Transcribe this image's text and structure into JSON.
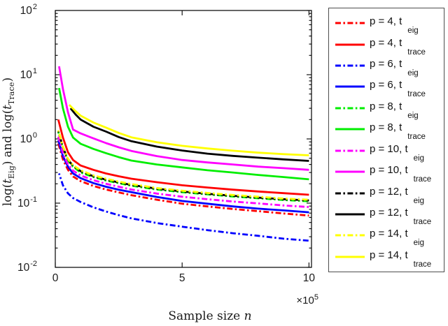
{
  "figure": {
    "background": "#ffffff"
  },
  "chart_data": {
    "type": "line",
    "title": "",
    "xlabel": {
      "text": "Sample size ",
      "var": "n"
    },
    "ylabel": {
      "p1": "log(",
      "t1": "t",
      "s1": "Eig",
      "p2": ") and log(",
      "t2": "t",
      "s2": "Trace",
      "p3": ")"
    },
    "x_axis": {
      "unit": "1e5",
      "range": [
        0,
        10.1
      ],
      "ticks": [
        0,
        5,
        10
      ],
      "tick_labels": [
        "0",
        "5",
        "10"
      ],
      "multiplier": {
        "base": "×10",
        "exp": "5"
      }
    },
    "y_axis": {
      "scale": "log",
      "range_exp": [
        -2,
        2
      ],
      "tick_base": "10",
      "tick_exponents": [
        "2",
        "1",
        "0",
        "-1",
        "-2"
      ],
      "minor_ticks": true
    },
    "grid": false,
    "legend_position": "outside-right",
    "series": [
      {
        "name": "p4-eig",
        "label": "p = 4, t_eig",
        "color": "#FF0000",
        "style": "dashdot",
        "points": [
          [
            0.12,
            0.85
          ],
          [
            0.3,
            0.48
          ],
          [
            0.5,
            0.33
          ],
          [
            0.7,
            0.26
          ],
          [
            1,
            0.22
          ],
          [
            1.5,
            0.185
          ],
          [
            2,
            0.163
          ],
          [
            2.5,
            0.147
          ],
          [
            3,
            0.133
          ],
          [
            4,
            0.113
          ],
          [
            5,
            0.098
          ],
          [
            6,
            0.089
          ],
          [
            7,
            0.081
          ],
          [
            8,
            0.075
          ],
          [
            9,
            0.069
          ],
          [
            10,
            0.064
          ]
        ]
      },
      {
        "name": "p4-trace",
        "label": "p = 4, t_trace",
        "color": "#FF0000",
        "style": "solid",
        "points": [
          [
            0.12,
            2.0
          ],
          [
            0.3,
            1.05
          ],
          [
            0.5,
            0.62
          ],
          [
            0.7,
            0.47
          ],
          [
            1,
            0.385
          ],
          [
            1.5,
            0.33
          ],
          [
            2,
            0.29
          ],
          [
            2.5,
            0.262
          ],
          [
            3,
            0.24
          ],
          [
            4,
            0.212
          ],
          [
            5,
            0.19
          ],
          [
            6,
            0.175
          ],
          [
            7,
            0.162
          ],
          [
            8,
            0.152
          ],
          [
            9,
            0.143
          ],
          [
            10,
            0.135
          ]
        ]
      },
      {
        "name": "p6-eig",
        "label": "p = 6, t_eig",
        "color": "#0000FF",
        "style": "dashdot",
        "points": [
          [
            0.15,
            0.29
          ],
          [
            0.3,
            0.19
          ],
          [
            0.5,
            0.142
          ],
          [
            0.7,
            0.12
          ],
          [
            1,
            0.104
          ],
          [
            1.5,
            0.086
          ],
          [
            2,
            0.074
          ],
          [
            2.5,
            0.065
          ],
          [
            3,
            0.058
          ],
          [
            4,
            0.049
          ],
          [
            5,
            0.043
          ],
          [
            6,
            0.038
          ],
          [
            7,
            0.034
          ],
          [
            8,
            0.031
          ],
          [
            9,
            0.028
          ],
          [
            10,
            0.026
          ]
        ]
      },
      {
        "name": "p6-trace",
        "label": "p = 6, t_trace",
        "color": "#0000FF",
        "style": "solid",
        "points": [
          [
            0.12,
            0.95
          ],
          [
            0.3,
            0.54
          ],
          [
            0.5,
            0.37
          ],
          [
            0.7,
            0.29
          ],
          [
            1,
            0.245
          ],
          [
            1.5,
            0.205
          ],
          [
            2,
            0.18
          ],
          [
            2.5,
            0.162
          ],
          [
            3,
            0.148
          ],
          [
            4,
            0.125
          ],
          [
            5,
            0.108
          ],
          [
            6,
            0.098
          ],
          [
            7,
            0.089
          ],
          [
            8,
            0.082
          ],
          [
            9,
            0.077
          ],
          [
            10,
            0.072
          ]
        ]
      },
      {
        "name": "p8-eig",
        "label": "p = 8, t_eig",
        "color": "#00EE00",
        "style": "dashdot",
        "points": [
          [
            0.12,
            1.28
          ],
          [
            0.3,
            0.72
          ],
          [
            0.5,
            0.46
          ],
          [
            0.7,
            0.37
          ],
          [
            1,
            0.3
          ],
          [
            1.5,
            0.255
          ],
          [
            2,
            0.225
          ],
          [
            2.5,
            0.205
          ],
          [
            3,
            0.187
          ],
          [
            4,
            0.163
          ],
          [
            5,
            0.148
          ],
          [
            6,
            0.137
          ],
          [
            7,
            0.127
          ],
          [
            8,
            0.119
          ],
          [
            9,
            0.112
          ],
          [
            10,
            0.107
          ]
        ]
      },
      {
        "name": "p8-trace",
        "label": "p = 8, t_trace",
        "color": "#00EE00",
        "style": "solid",
        "points": [
          [
            0.15,
            6.2
          ],
          [
            0.3,
            3.0
          ],
          [
            0.5,
            1.55
          ],
          [
            0.7,
            1.05
          ],
          [
            1,
            0.84
          ],
          [
            1.5,
            0.7
          ],
          [
            2,
            0.6
          ],
          [
            2.5,
            0.52
          ],
          [
            3,
            0.46
          ],
          [
            4,
            0.4
          ],
          [
            5,
            0.36
          ],
          [
            6,
            0.325
          ],
          [
            7,
            0.3
          ],
          [
            8,
            0.275
          ],
          [
            9,
            0.255
          ],
          [
            10,
            0.235
          ]
        ]
      },
      {
        "name": "p10-eig",
        "label": "p = 10, t_eig",
        "color": "#FF00FF",
        "style": "dashdot",
        "points": [
          [
            0.12,
            1.08
          ],
          [
            0.3,
            0.6
          ],
          [
            0.5,
            0.4
          ],
          [
            0.7,
            0.32
          ],
          [
            1,
            0.27
          ],
          [
            1.5,
            0.228
          ],
          [
            2,
            0.2
          ],
          [
            2.5,
            0.18
          ],
          [
            3,
            0.163
          ],
          [
            4,
            0.141
          ],
          [
            5,
            0.126
          ],
          [
            6,
            0.115
          ],
          [
            7,
            0.106
          ],
          [
            8,
            0.099
          ],
          [
            9,
            0.092
          ],
          [
            10,
            0.087
          ]
        ]
      },
      {
        "name": "p10-trace",
        "label": "p = 10, t_trace",
        "color": "#FF00FF",
        "style": "solid",
        "points": [
          [
            0.15,
            13.5
          ],
          [
            0.3,
            6.0
          ],
          [
            0.5,
            2.6
          ],
          [
            0.7,
            1.4
          ],
          [
            1,
            1.22
          ],
          [
            1.5,
            1.02
          ],
          [
            2,
            0.86
          ],
          [
            2.5,
            0.74
          ],
          [
            3,
            0.65
          ],
          [
            4,
            0.54
          ],
          [
            5,
            0.47
          ],
          [
            6,
            0.43
          ],
          [
            7,
            0.4
          ],
          [
            8,
            0.37
          ],
          [
            9,
            0.35
          ],
          [
            10,
            0.33
          ]
        ]
      },
      {
        "name": "p12-eig",
        "label": "p = 12, t_eig",
        "color": "#000000",
        "style": "dashdot",
        "points": [
          [
            0.12,
            1.32
          ],
          [
            0.3,
            0.74
          ],
          [
            0.5,
            0.475
          ],
          [
            0.7,
            0.38
          ],
          [
            1,
            0.315
          ],
          [
            1.5,
            0.262
          ],
          [
            2,
            0.232
          ],
          [
            2.5,
            0.21
          ],
          [
            3,
            0.192
          ],
          [
            4,
            0.168
          ],
          [
            5,
            0.152
          ],
          [
            6,
            0.14
          ],
          [
            7,
            0.13
          ],
          [
            8,
            0.122
          ],
          [
            9,
            0.115
          ],
          [
            10,
            0.11
          ]
        ]
      },
      {
        "name": "p12-trace",
        "label": "p = 12, t_trace",
        "color": "#000000",
        "style": "solid",
        "points": [
          [
            0.6,
            3.0
          ],
          [
            0.8,
            2.4
          ],
          [
            1,
            2.0
          ],
          [
            1.5,
            1.55
          ],
          [
            2,
            1.3
          ],
          [
            2.5,
            1.07
          ],
          [
            3,
            0.92
          ],
          [
            4,
            0.76
          ],
          [
            5,
            0.66
          ],
          [
            6,
            0.59
          ],
          [
            7,
            0.545
          ],
          [
            8,
            0.51
          ],
          [
            9,
            0.48
          ],
          [
            10,
            0.455
          ]
        ]
      },
      {
        "name": "p14-eig",
        "label": "p = 14, t_eig",
        "color": "#FFFF00",
        "style": "dashdot",
        "points": [
          [
            0.12,
            1.36
          ],
          [
            0.3,
            0.76
          ],
          [
            0.5,
            0.49
          ],
          [
            0.7,
            0.39
          ],
          [
            1,
            0.325
          ],
          [
            1.5,
            0.27
          ],
          [
            2,
            0.24
          ],
          [
            2.5,
            0.216
          ],
          [
            3,
            0.198
          ],
          [
            4,
            0.172
          ],
          [
            5,
            0.156
          ],
          [
            6,
            0.144
          ],
          [
            7,
            0.134
          ],
          [
            8,
            0.126
          ],
          [
            9,
            0.118
          ],
          [
            10,
            0.113
          ]
        ]
      },
      {
        "name": "p14-trace",
        "label": "p = 14, t_trace",
        "color": "#FFFF00",
        "style": "solid",
        "points": [
          [
            0.55,
            3.4
          ],
          [
            0.8,
            2.7
          ],
          [
            1,
            2.3
          ],
          [
            1.5,
            1.8
          ],
          [
            2,
            1.5
          ],
          [
            2.5,
            1.24
          ],
          [
            3,
            1.06
          ],
          [
            4,
            0.89
          ],
          [
            5,
            0.78
          ],
          [
            6,
            0.71
          ],
          [
            7,
            0.655
          ],
          [
            8,
            0.61
          ],
          [
            9,
            0.58
          ],
          [
            10,
            0.555
          ]
        ]
      }
    ]
  },
  "legend": {
    "entries": [
      {
        "main": "p = 4, t",
        "sub": "eig",
        "color": "#FF0000",
        "style": "dashdot"
      },
      {
        "main": "p = 4, t",
        "sub": "trace",
        "color": "#FF0000",
        "style": "solid"
      },
      {
        "main": "p = 6, t",
        "sub": "eig",
        "color": "#0000FF",
        "style": "dashdot"
      },
      {
        "main": "p = 6, t",
        "sub": "trace",
        "color": "#0000FF",
        "style": "solid"
      },
      {
        "main": "p = 8, t",
        "sub": "eig",
        "color": "#00EE00",
        "style": "dashdot"
      },
      {
        "main": "p = 8, t",
        "sub": "trace",
        "color": "#00EE00",
        "style": "solid"
      },
      {
        "main": "p = 10, t",
        "sub": "eig",
        "color": "#FF00FF",
        "style": "dashdot"
      },
      {
        "main": "p = 10, t",
        "sub": "trace",
        "color": "#FF00FF",
        "style": "solid"
      },
      {
        "main": "p = 12, t",
        "sub": "eig",
        "color": "#000000",
        "style": "dashdot"
      },
      {
        "main": "p = 12, t",
        "sub": "trace",
        "color": "#000000",
        "style": "solid"
      },
      {
        "main": "p = 14, t",
        "sub": "eig",
        "color": "#FFFF00",
        "style": "dashdot"
      },
      {
        "main": "p = 14, t",
        "sub": "trace",
        "color": "#FFFF00",
        "style": "solid"
      }
    ]
  }
}
